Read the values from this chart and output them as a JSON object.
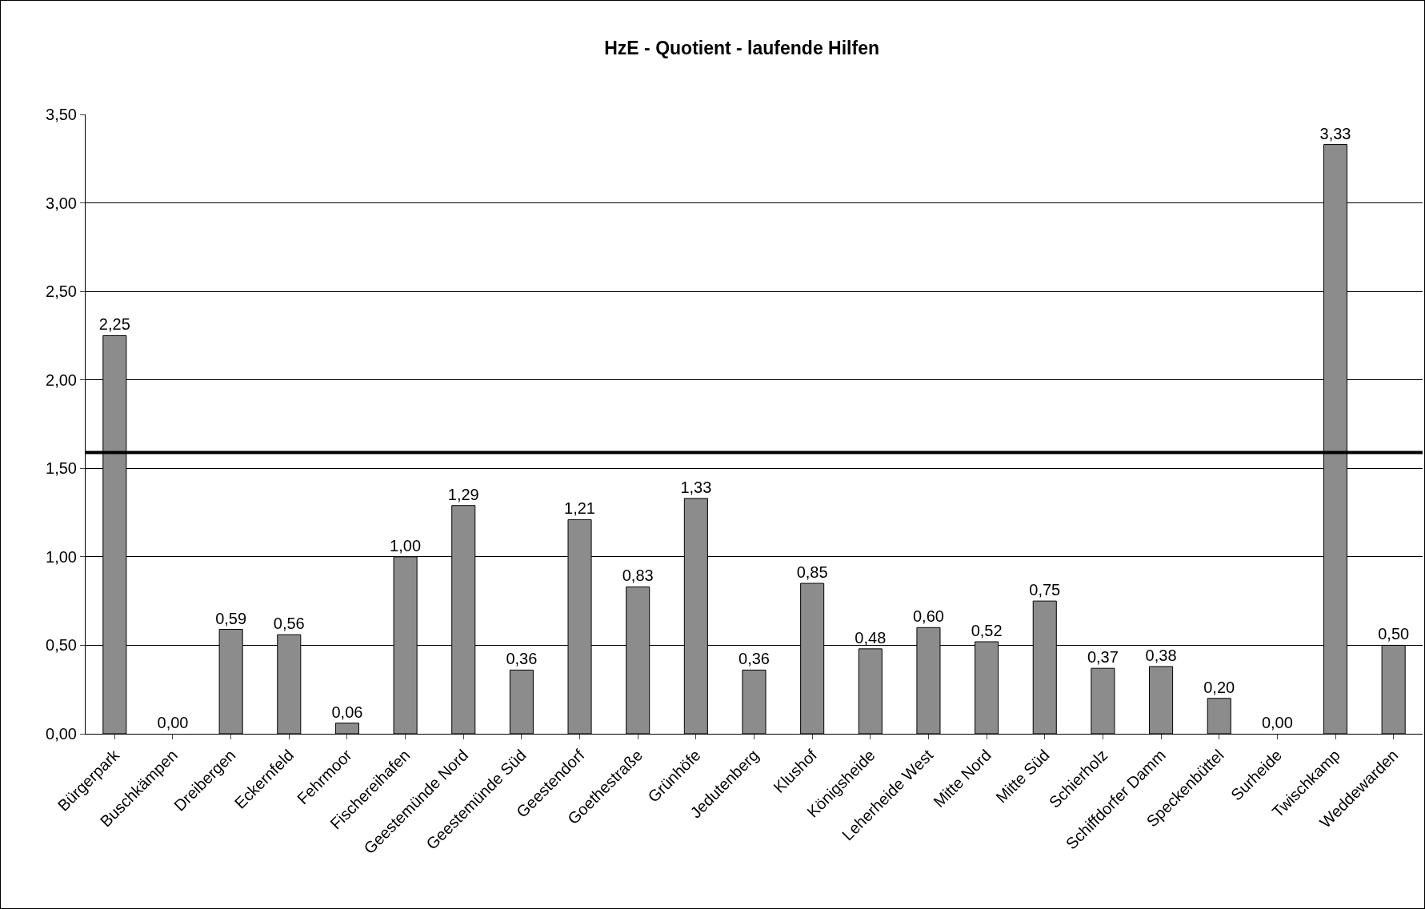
{
  "chart_data": {
    "type": "bar",
    "title": "HzE - Quotient - laufende Hilfen",
    "categories": [
      "Bürgerpark",
      "Buschkämpen",
      "Dreibergen",
      "Eckernfeld",
      "Fehrmoor",
      "Fischereihafen",
      "Geestemünde Nord",
      "Geestemünde Süd",
      "Geestendorf",
      "Goethestraße",
      "Grünhöfe",
      "Jedutenberg",
      "Klushof",
      "Königsheide",
      "Leherheide West",
      "Mitte Nord",
      "Mitte Süd",
      "Schierholz",
      "Schiffdorfer Damm",
      "Speckenbüttel",
      "Surheide",
      "Twischkamp",
      "Weddewarden"
    ],
    "values": [
      2.25,
      0,
      0.59,
      0.56,
      0.06,
      1.0,
      1.29,
      0.36,
      1.21,
      0.83,
      1.33,
      0.36,
      0.85,
      0.48,
      0.6,
      0.52,
      0.75,
      0.37,
      0.38,
      0.2,
      0,
      3.33,
      0.5
    ],
    "value_labels": [
      "2,25",
      "0,00",
      "0,59",
      "0,56",
      "0,06",
      "1,00",
      "1,29",
      "0,36",
      "1,21",
      "0,83",
      "1,33",
      "0,36",
      "0,85",
      "0,48",
      "0,60",
      "0,52",
      "0,75",
      "0,37",
      "0,38",
      "0,20",
      "0,00",
      "3,33",
      "0,50"
    ],
    "color": "#8c8c8c",
    "ylim": [
      0,
      3.5
    ],
    "yticks": [
      {
        "value": 0,
        "label": "0,00"
      },
      {
        "value": 0.5,
        "label": "0,50"
      },
      {
        "value": 1,
        "label": "1,00"
      },
      {
        "value": 1.5,
        "label": "1,50"
      },
      {
        "value": 2,
        "label": "2,00"
      },
      {
        "value": 2.5,
        "label": "2,50"
      },
      {
        "value": 3,
        "label": "3,00"
      },
      {
        "value": 3.5,
        "label": "3,50"
      }
    ],
    "grid": "y",
    "legend": false,
    "ref_lines": [
      {
        "axis": "y",
        "value": 1.59,
        "color": "#000000"
      }
    ]
  }
}
